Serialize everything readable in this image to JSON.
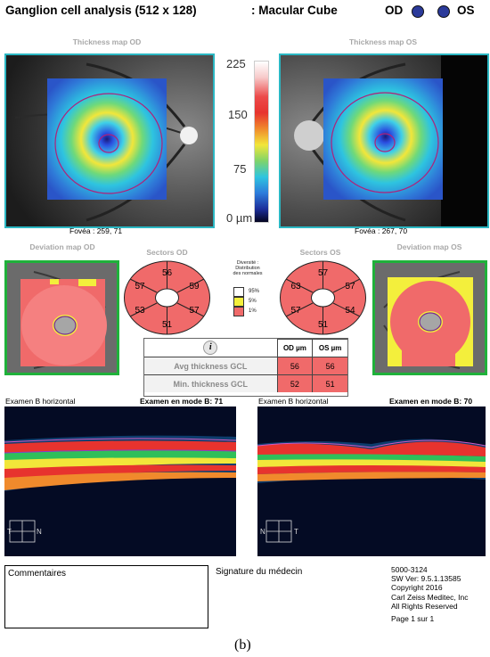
{
  "header": {
    "title": "Ganglion cell analysis (512 x 128)",
    "scan_type": ": Macular Cube",
    "od_label": "OD",
    "os_label": "OS"
  },
  "thickness": {
    "od_title": "Thickness map OD",
    "os_title": "Thickness map OS",
    "od_fovea": "Fovéa : 259, 71",
    "os_fovea": "Fovéa : 267, 70",
    "scale_ticks": [
      "225",
      "150",
      "75",
      "0 µm"
    ]
  },
  "deviation": {
    "od_title": "Deviation map OD",
    "os_title": "Deviation map OS"
  },
  "sectors": {
    "od_title": "Sectors OD",
    "os_title": "Sectors OS",
    "od_values": {
      "top": "56",
      "top_right": "59",
      "bottom_right": "57",
      "bottom": "51",
      "bottom_left": "53",
      "top_left": "57"
    },
    "os_values": {
      "top": "57",
      "top_right": "57",
      "bottom_right": "54",
      "bottom": "51",
      "bottom_left": "57",
      "top_left": "63"
    }
  },
  "legend": {
    "title_lines": [
      "Diversité :",
      "Distribution",
      "des normales"
    ],
    "items": [
      {
        "label": "95%",
        "color": "#ffffff"
      },
      {
        "label": "5%",
        "color": "#f3ef3c"
      },
      {
        "label": "1%",
        "color": "#f06a6a"
      }
    ]
  },
  "gcl_table": {
    "info_icon": "i",
    "col_od": "OD µm",
    "col_os": "OS µm",
    "rows": [
      {
        "label": "Avg thickness GCL",
        "od": "56",
        "os": "56"
      },
      {
        "label": "Min. thickness GCL",
        "od": "52",
        "os": "51"
      }
    ]
  },
  "bscan": {
    "od_left": "Examen B horizontal",
    "od_right": "Examen en mode B: 71",
    "os_left": "Examen B horizontal",
    "os_right": "Examen en mode B: 70",
    "od_orient": {
      "left": "T",
      "right": "N"
    },
    "os_orient": {
      "left": "N",
      "right": "T"
    }
  },
  "footer": {
    "comments_label": "Commentaires",
    "signature_label": "Signature du médecin",
    "info_lines": [
      "5000-3124",
      "SW Ver: 9.5.1.13585",
      "Copyright 2016",
      "Carl Zeiss Meditec, Inc",
      "All Rights Reserved"
    ],
    "page": "Page 1 sur 1"
  },
  "figure_label": "(b)",
  "colors": {
    "accent_cyan": "#2bb7c3",
    "deviation_green": "#1fb13a",
    "sector_red": "#f06a6a",
    "eye_dot": "#2b3a9a"
  }
}
